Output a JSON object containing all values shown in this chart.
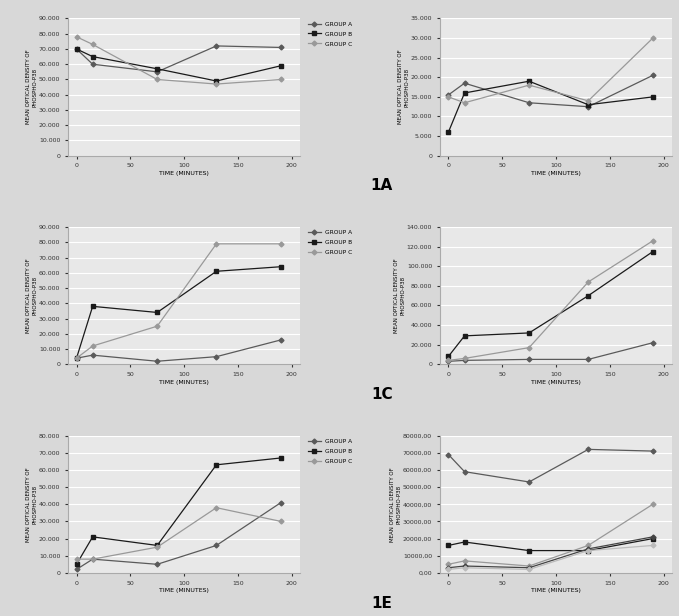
{
  "time_points": [
    0,
    15,
    75,
    130,
    190
  ],
  "panel_1A": {
    "ylabel": "MEAN OPTICAL DENSITY OF\nPHOSPHO-P38",
    "xlabel": "TIME (MINUTES)",
    "ylim": [
      0,
      90000
    ],
    "yticks": [
      0,
      10000,
      20000,
      30000,
      40000,
      50000,
      60000,
      70000,
      80000,
      90000
    ],
    "ytick_labels": [
      "0",
      "10.000",
      "20.000",
      "30.000",
      "40.000",
      "50.000",
      "60.000",
      "70.000",
      "80.000",
      "90.000"
    ],
    "group_A": [
      70000,
      60000,
      55000,
      72000,
      71000
    ],
    "group_B": [
      70000,
      65000,
      57000,
      49000,
      59000
    ],
    "group_C": [
      78000,
      73000,
      50000,
      47000,
      50000
    ]
  },
  "panel_1B": {
    "ylabel": "MEAN OPTICAL DENSITY OF\nPHOSPHO-P38",
    "xlabel": "TIME (MINUTES)",
    "ylim": [
      0,
      35000
    ],
    "yticks": [
      0,
      5000,
      10000,
      15000,
      20000,
      25000,
      30000,
      35000
    ],
    "ytick_labels": [
      "0",
      "5.000",
      "10.000",
      "15.000",
      "20.000",
      "25.000",
      "30.000",
      "35.000"
    ],
    "group_A": [
      15500,
      18500,
      13500,
      12500,
      20500
    ],
    "group_B": [
      6000,
      16000,
      19000,
      13000,
      15000
    ],
    "group_C": [
      15000,
      13500,
      18000,
      14000,
      30000
    ]
  },
  "panel_1C": {
    "ylabel": "MEAN OPTICAL DENSITY OF\nPHOSPHO-P38",
    "xlabel": "TIME (MINUTES)",
    "ylim": [
      0,
      90000
    ],
    "yticks": [
      0,
      10000,
      20000,
      30000,
      40000,
      50000,
      60000,
      70000,
      80000,
      90000
    ],
    "ytick_labels": [
      "0",
      "10.000",
      "20.000",
      "30.000",
      "40.000",
      "50.000",
      "60.000",
      "70.000",
      "80.000",
      "90.000"
    ],
    "group_A": [
      4000,
      6000,
      2000,
      5000,
      16000
    ],
    "group_B": [
      4000,
      38000,
      34000,
      61000,
      64000
    ],
    "group_C": [
      4000,
      12000,
      25000,
      79000,
      79000
    ]
  },
  "panel_1D": {
    "ylabel": "MEAN OPTICAL DENSITY OF\nPHOSPHO-P38",
    "xlabel": "TIME (MINUTES)",
    "ylim": [
      0,
      140000
    ],
    "yticks": [
      0,
      20000,
      40000,
      60000,
      80000,
      100000,
      120000,
      140000
    ],
    "ytick_labels": [
      "0",
      "20.000",
      "40.000",
      "60.000",
      "80.000",
      "100.000",
      "120.000",
      "140.000"
    ],
    "group_A": [
      3000,
      4000,
      5000,
      5000,
      22000
    ],
    "group_B": [
      8000,
      29000,
      32000,
      70000,
      115000
    ],
    "group_C": [
      4000,
      6000,
      17000,
      84000,
      126000
    ]
  },
  "panel_1E": {
    "ylabel": "MEAN OPTICAL DENSITY OF\nPHOSPHO-P38",
    "xlabel": "TIME (MINUTES)",
    "ylim": [
      0,
      80000
    ],
    "yticks": [
      0,
      10000,
      20000,
      30000,
      40000,
      50000,
      60000,
      70000,
      80000
    ],
    "ytick_labels": [
      "0",
      "10.000",
      "20.000",
      "30.000",
      "40.000",
      "50.000",
      "60.000",
      "70.000",
      "80.000"
    ],
    "group_A": [
      2000,
      8000,
      5000,
      16000,
      41000
    ],
    "group_B": [
      5000,
      21000,
      16000,
      63000,
      67000
    ],
    "group_C": [
      8000,
      8000,
      15000,
      38000,
      30000
    ]
  },
  "panel_1F": {
    "ylabel": "MEAN OPTICAL DENSITY OF\nPHOSPHO-P38",
    "xlabel": "TIME (MINUTES)",
    "ylim": [
      0,
      80000
    ],
    "yticks": [
      0,
      10000,
      20000,
      30000,
      40000,
      50000,
      60000,
      70000,
      80000
    ],
    "ytick_labels": [
      "0,00",
      "10000,00",
      "20000,00",
      "30000,00",
      "40000,00",
      "50000,00",
      "60000,00",
      "70000,00",
      "80000,00"
    ],
    "lamina_propria": [
      69000,
      59000,
      53000,
      72000,
      71000
    ],
    "crypts": [
      16000,
      18000,
      13000,
      13000,
      20000
    ],
    "circular_muscle": [
      5000,
      7000,
      4000,
      16000,
      40000
    ],
    "longitudinal_muscle": [
      3000,
      4000,
      3000,
      14000,
      21000
    ],
    "myenteric_plexus": [
      2000,
      3000,
      2000,
      13000,
      16000
    ]
  },
  "colors": {
    "group_A": "#5a5a5a",
    "group_B": "#1a1a1a",
    "group_C": "#999999",
    "lamina_propria": "#5a5a5a",
    "crypts": "#1a1a1a",
    "circular_muscle": "#999999",
    "longitudinal_muscle": "#444444",
    "myenteric_plexus": "#bbbbbb"
  }
}
